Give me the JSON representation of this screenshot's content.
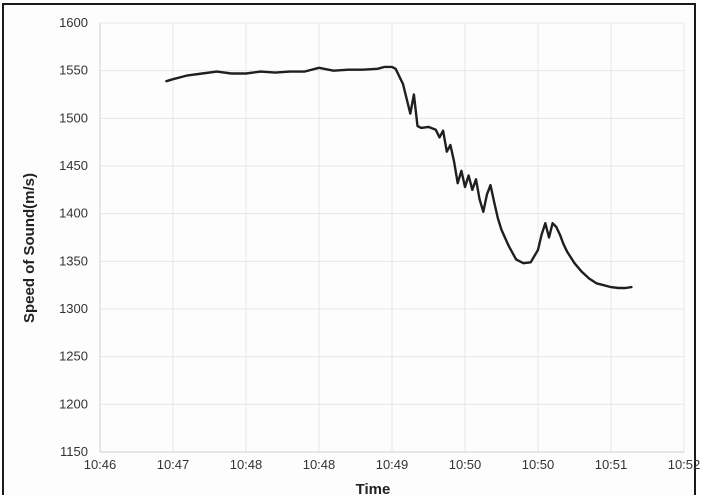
{
  "chart_data": {
    "type": "line",
    "title": "",
    "xlabel": "Time",
    "ylabel": "Speed of Sound(m/s)",
    "x_tick_labels": [
      "10:46",
      "10:47",
      "10:48",
      "10:48",
      "10:49",
      "10:50",
      "10:50",
      "10:51",
      "10:52"
    ],
    "y_tick_labels": [
      "1150",
      "1200",
      "1250",
      "1300",
      "1350",
      "1400",
      "1450",
      "1500",
      "1550",
      "1600"
    ],
    "xlim": [
      0,
      8
    ],
    "ylim": [
      1150,
      1600
    ],
    "grid": true,
    "legend": "none",
    "line_color": "#1f1f1f",
    "series": [
      {
        "x": [
          0.91,
          1.0,
          1.2,
          1.4,
          1.6,
          1.8,
          2.0,
          2.2,
          2.4,
          2.6,
          2.8,
          3.0,
          3.2,
          3.4,
          3.6,
          3.8,
          3.9,
          4.0,
          4.05,
          4.15,
          4.25,
          4.3,
          4.35,
          4.4,
          4.5,
          4.6,
          4.65,
          4.7,
          4.75,
          4.8,
          4.85,
          4.9,
          4.95,
          5.0,
          5.05,
          5.1,
          5.15,
          5.2,
          5.25,
          5.3,
          5.35,
          5.4,
          5.45,
          5.5,
          5.6,
          5.7,
          5.8,
          5.9,
          6.0,
          6.05,
          6.1,
          6.15,
          6.2,
          6.25,
          6.3,
          6.35,
          6.4,
          6.5,
          6.6,
          6.7,
          6.8,
          6.9,
          7.0,
          7.1,
          7.2,
          7.28
        ],
        "y": [
          1539,
          1541,
          1545,
          1547,
          1549,
          1547,
          1547,
          1549,
          1548,
          1549,
          1549,
          1553,
          1550,
          1551,
          1551,
          1552,
          1554,
          1554,
          1552,
          1536,
          1505,
          1525,
          1492,
          1490,
          1491,
          1488,
          1480,
          1487,
          1465,
          1472,
          1455,
          1432,
          1445,
          1428,
          1440,
          1425,
          1436,
          1415,
          1402,
          1420,
          1430,
          1412,
          1395,
          1383,
          1366,
          1352,
          1348,
          1349,
          1362,
          1378,
          1390,
          1375,
          1390,
          1386,
          1378,
          1368,
          1360,
          1348,
          1339,
          1332,
          1327,
          1325,
          1323,
          1322,
          1322,
          1323
        ]
      }
    ]
  }
}
